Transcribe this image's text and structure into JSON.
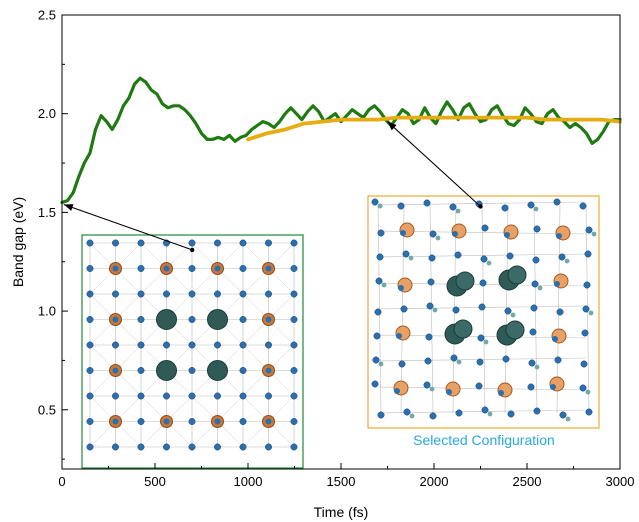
{
  "chart_data": {
    "type": "line",
    "xlabel": "Time (fs)",
    "ylabel": "Band gap (eV)",
    "xlim": [
      0,
      3000
    ],
    "ylim": [
      0.2,
      2.5
    ],
    "x_ticks": [
      0,
      500,
      1000,
      1500,
      2000,
      2500,
      3000
    ],
    "y_ticks": [
      0.5,
      1.0,
      1.5,
      2.0,
      2.5
    ],
    "x_tick_labels": [
      "0",
      "500",
      "1000",
      "1500",
      "2000",
      "2500",
      "3000"
    ],
    "y_tick_labels": [
      "0.5",
      "1.0",
      "1.5",
      "2.0",
      "2.5"
    ],
    "grid": false,
    "series": [
      {
        "color": "#1f7a12",
        "x": [
          0,
          30,
          60,
          90,
          120,
          150,
          180,
          210,
          240,
          270,
          300,
          330,
          360,
          390,
          420,
          450,
          480,
          510,
          540,
          570,
          600,
          630,
          660,
          690,
          720,
          750,
          780,
          810,
          840,
          870,
          900,
          930,
          960,
          990,
          1020,
          1050,
          1080,
          1110,
          1140,
          1170,
          1200,
          1230,
          1260,
          1290,
          1320,
          1350,
          1380,
          1410,
          1440,
          1470,
          1500,
          1530,
          1560,
          1590,
          1620,
          1650,
          1680,
          1710,
          1740,
          1770,
          1800,
          1830,
          1860,
          1890,
          1920,
          1950,
          1980,
          2010,
          2040,
          2070,
          2100,
          2130,
          2160,
          2190,
          2220,
          2250,
          2280,
          2310,
          2340,
          2370,
          2400,
          2430,
          2460,
          2490,
          2520,
          2550,
          2580,
          2610,
          2640,
          2670,
          2700,
          2730,
          2760,
          2790,
          2820,
          2850,
          2880,
          2910,
          2940,
          2970,
          3000
        ],
        "y": [
          1.55,
          1.56,
          1.6,
          1.68,
          1.75,
          1.8,
          1.92,
          1.99,
          1.96,
          1.92,
          1.97,
          2.04,
          2.08,
          2.15,
          2.18,
          2.16,
          2.12,
          2.1,
          2.05,
          2.03,
          2.04,
          2.04,
          2.02,
          1.99,
          1.95,
          1.9,
          1.87,
          1.87,
          1.88,
          1.87,
          1.89,
          1.86,
          1.88,
          1.89,
          1.92,
          1.94,
          1.96,
          1.95,
          1.93,
          1.96,
          2.0,
          2.03,
          2.0,
          1.97,
          2.01,
          2.04,
          2.01,
          1.96,
          1.98,
          2.0,
          1.96,
          1.99,
          2.02,
          2.0,
          1.98,
          2.02,
          2.04,
          2.01,
          1.97,
          1.94,
          1.98,
          2.02,
          2.0,
          1.95,
          1.97,
          2.03,
          1.98,
          1.95,
          2.01,
          2.06,
          2.02,
          1.97,
          2.03,
          2.05,
          2.0,
          1.96,
          1.97,
          2.02,
          2.04,
          1.99,
          1.95,
          1.94,
          1.97,
          2.03,
          2.0,
          1.96,
          1.95,
          2.0,
          2.02,
          1.98,
          1.96,
          1.93,
          1.95,
          1.93,
          1.9,
          1.85,
          1.87,
          1.91,
          1.96,
          1.97,
          1.97
        ]
      },
      {
        "color": "#e6ac12",
        "x": [
          1000,
          1100,
          1200,
          1300,
          1400,
          1500,
          1600,
          1700,
          1800,
          1900,
          2000,
          2100,
          2200,
          2300,
          2400,
          2500,
          2600,
          2700,
          2800,
          2900,
          3000
        ],
        "y": [
          1.87,
          1.9,
          1.92,
          1.95,
          1.96,
          1.97,
          1.97,
          1.97,
          1.98,
          1.98,
          1.98,
          1.98,
          1.98,
          1.98,
          1.98,
          1.98,
          1.97,
          1.97,
          1.97,
          1.97,
          1.96
        ]
      }
    ],
    "annotations": [
      {
        "target": [
          10,
          1.54
        ],
        "from": [
          700,
          1.31
        ]
      },
      {
        "target": [
          1750,
          1.96
        ],
        "from": [
          2250,
          1.53
        ]
      }
    ],
    "insets": [
      {
        "type": "crystal-structure",
        "border_color": "#1f8a3a",
        "caption": ""
      },
      {
        "type": "crystal-structure",
        "border_color": "#f0a930",
        "caption": "Selected Configuration",
        "caption_color": "#29a8e0"
      }
    ]
  }
}
